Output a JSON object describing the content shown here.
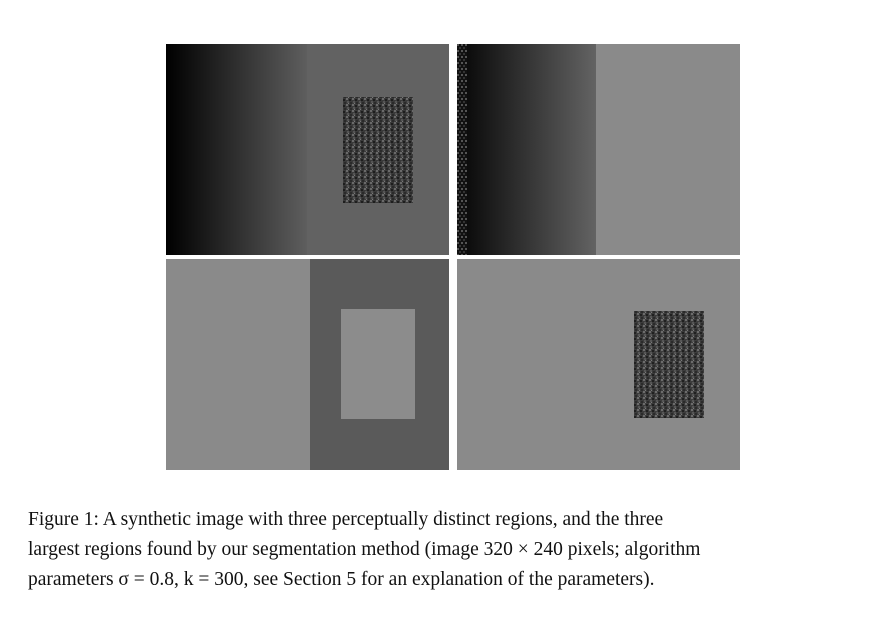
{
  "figure": {
    "panels": [
      {
        "name": "synthetic-image",
        "description_label": ""
      },
      {
        "name": "largest-region-1",
        "description_label": ""
      },
      {
        "name": "largest-region-2",
        "description_label": ""
      },
      {
        "name": "largest-region-3",
        "description_label": ""
      }
    ],
    "colors": {
      "uniform_gray": "#8a8a8a",
      "mid_gray": "#626262",
      "dark_band": "#5a5a5a",
      "light_rect": "#8c8c8c",
      "noise_base": "#3a3a3a"
    }
  },
  "caption": {
    "line1": "Figure 1:  A synthetic image with three perceptually distinct regions, and the three",
    "line2": "largest regions found by our segmentation method (image 320 × 240 pixels; algorithm",
    "line3": "parameters σ = 0.8, k = 300, see Section 5 for an explanation of the parameters)."
  }
}
